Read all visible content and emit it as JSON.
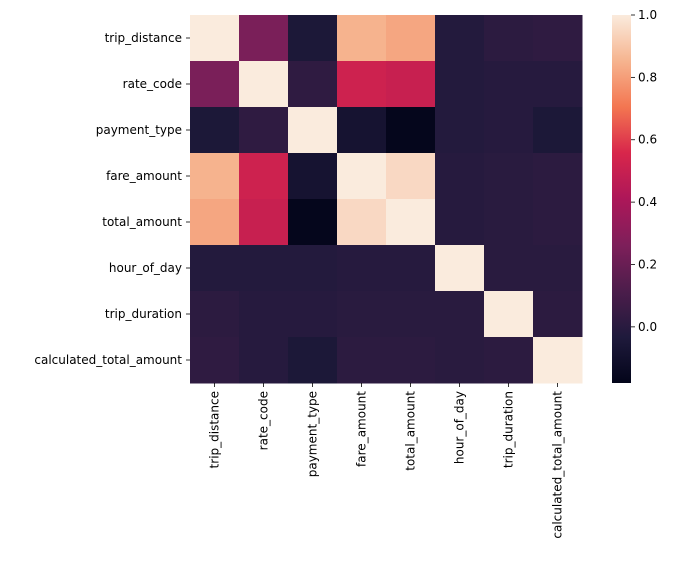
{
  "chart_data": {
    "type": "heatmap",
    "title": "",
    "xlabel": "",
    "ylabel": "",
    "x_categories": [
      "trip_distance",
      "rate_code",
      "payment_type",
      "fare_amount",
      "total_amount",
      "hour_of_day",
      "trip_duration",
      "calculated_total_amount"
    ],
    "y_categories": [
      "trip_distance",
      "rate_code",
      "payment_type",
      "fare_amount",
      "total_amount",
      "hour_of_day",
      "trip_duration",
      "calculated_total_amount"
    ],
    "values": [
      [
        1.0,
        0.25,
        -0.05,
        0.85,
        0.82,
        -0.02,
        0.01,
        0.02
      ],
      [
        0.25,
        1.0,
        0.02,
        0.52,
        0.5,
        -0.02,
        -0.01,
        -0.01
      ],
      [
        -0.05,
        0.02,
        1.0,
        -0.08,
        -0.17,
        -0.02,
        -0.01,
        -0.05
      ],
      [
        0.85,
        0.52,
        -0.08,
        1.0,
        0.95,
        -0.01,
        0.0,
        0.01
      ],
      [
        0.82,
        0.5,
        -0.17,
        0.95,
        1.0,
        -0.01,
        0.0,
        0.01
      ],
      [
        -0.02,
        -0.02,
        -0.02,
        -0.01,
        -0.01,
        1.0,
        0.0,
        0.0
      ],
      [
        0.01,
        -0.01,
        -0.01,
        0.0,
        0.0,
        0.0,
        1.0,
        0.01
      ],
      [
        0.02,
        -0.01,
        -0.05,
        0.01,
        0.01,
        0.0,
        0.01,
        1.0
      ]
    ],
    "colorbar": {
      "min": -0.18,
      "max": 1.0,
      "ticks": [
        "0.0",
        "0.2",
        "0.4",
        "0.6",
        "0.8",
        "1.0"
      ],
      "colormap": "rocket",
      "colormap_stops": [
        "#03051a",
        "#1f1a3c",
        "#4c1d4b",
        "#7e1f5a",
        "#ad1759",
        "#d8264b",
        "#f37651",
        "#f6b48f",
        "#faebdd"
      ]
    },
    "grid": false,
    "legend": "none"
  }
}
